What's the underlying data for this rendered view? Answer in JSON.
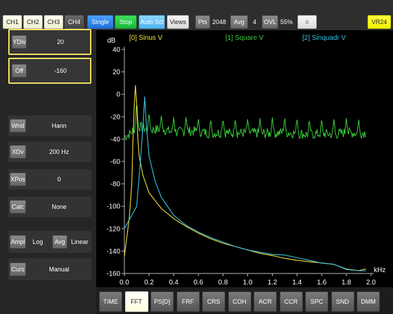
{
  "toolbar": {
    "channels": [
      "CH1",
      "CH2",
      "CH3",
      "CH4"
    ],
    "single": "Single",
    "stop": "Stop",
    "auto_scale": "Auto Scl",
    "views": "Views",
    "pts_label": "Pts",
    "pts_value": "2048",
    "avg_label": "Avg",
    "avg_value": "4",
    "ovl_label": "OVL",
    "ovl_value": "55%",
    "equals": "=",
    "vr": "VR24"
  },
  "sidebar": {
    "ydiv": {
      "label": "YDiv",
      "value": "20"
    },
    "off": {
      "label": "Off",
      "value": "-160"
    },
    "wnd": {
      "label": "Wnd",
      "value": "Hann"
    },
    "xdiv": {
      "label": "XDv",
      "value": "200 Hz"
    },
    "xpos": {
      "label": "XPos",
      "value": "0"
    },
    "calc": {
      "label": "Calc",
      "value": "None"
    },
    "ampl": {
      "label": "Ampl",
      "value": "Log",
      "avg_label": "Avg",
      "avg_value": "Linear"
    },
    "curs": {
      "label": "Curs",
      "value": "Manual"
    }
  },
  "bottom_tabs": [
    "TIME",
    "FFT",
    "PS[D]",
    "FRF",
    "CRS",
    "COH",
    "ACR",
    "CCR",
    "SPC",
    "SND",
    "DMM"
  ],
  "colors": {
    "ch0": "#f4e23a",
    "ch1": "#3ccf3c",
    "ch2": "#35c6e8",
    "active": "#f0e060"
  },
  "chart_data": {
    "type": "line",
    "ylabel": "dB",
    "xlabel": "kHz",
    "ylim": [
      -160,
      40
    ],
    "xlim": [
      0.0,
      2.0
    ],
    "yticks": [
      "40",
      "20",
      "0",
      "-20",
      "-40",
      "-60",
      "-80",
      "-100",
      "-120",
      "-140",
      "-160"
    ],
    "xticks": [
      "0.0",
      "0.2",
      "0.4",
      "0.6",
      "0.8",
      "1.0",
      "1.2",
      "1.4",
      "1.6",
      "1.8",
      "2.0"
    ],
    "series": [
      {
        "name": "[0] Sinus V",
        "color": "#f4e23a",
        "points": [
          [
            0.0,
            -145
          ],
          [
            0.04,
            -110
          ],
          [
            0.06,
            -80
          ],
          [
            0.07,
            -40
          ],
          [
            0.08,
            -10
          ],
          [
            0.09,
            8
          ],
          [
            0.1,
            -10
          ],
          [
            0.11,
            -40
          ],
          [
            0.12,
            -55
          ],
          [
            0.15,
            -72
          ],
          [
            0.2,
            -88
          ],
          [
            0.3,
            -102
          ],
          [
            0.4,
            -111
          ],
          [
            0.5,
            -118
          ],
          [
            0.6,
            -124
          ],
          [
            0.7,
            -129
          ],
          [
            0.8,
            -133
          ],
          [
            0.9,
            -136
          ],
          [
            1.0,
            -139
          ],
          [
            1.1,
            -142
          ],
          [
            1.2,
            -144
          ],
          [
            1.3,
            -146
          ],
          [
            1.4,
            -148
          ],
          [
            1.5,
            -150
          ],
          [
            1.6,
            -152
          ],
          [
            1.7,
            -153
          ],
          [
            1.8,
            -155
          ],
          [
            1.9,
            -156
          ],
          [
            1.96,
            -157
          ]
        ]
      },
      {
        "name": "[1] Square V",
        "color": "#3ccf3c",
        "points": [
          [
            0.0,
            -38
          ],
          [
            0.05,
            -35
          ],
          [
            0.1,
            -28
          ],
          [
            0.2,
            -32
          ],
          [
            0.3,
            -31
          ],
          [
            0.4,
            -34
          ],
          [
            0.5,
            -33
          ],
          [
            0.6,
            -33
          ],
          [
            0.7,
            -35
          ],
          [
            0.8,
            -34
          ],
          [
            0.9,
            -35
          ],
          [
            1.0,
            -34
          ],
          [
            1.1,
            -35
          ],
          [
            1.2,
            -35
          ],
          [
            1.3,
            -34
          ],
          [
            1.4,
            -35
          ],
          [
            1.5,
            -36
          ],
          [
            1.6,
            -35
          ],
          [
            1.7,
            -36
          ],
          [
            1.8,
            -34
          ],
          [
            1.9,
            -35
          ],
          [
            1.96,
            -34
          ]
        ],
        "peaks": [
          [
            0.1,
            -5
          ],
          [
            0.2,
            -15
          ],
          [
            0.3,
            -18
          ],
          [
            0.4,
            -20
          ],
          [
            0.5,
            -20
          ],
          [
            0.6,
            -21
          ],
          [
            0.7,
            -21
          ],
          [
            0.8,
            -21
          ],
          [
            0.9,
            -21
          ],
          [
            1.0,
            -21
          ],
          [
            1.1,
            -21
          ],
          [
            1.2,
            -20
          ],
          [
            1.3,
            -20
          ],
          [
            1.4,
            -20
          ],
          [
            1.5,
            -21
          ],
          [
            1.6,
            -21
          ],
          [
            1.7,
            -21
          ],
          [
            1.8,
            -21
          ],
          [
            1.9,
            -22
          ]
        ]
      },
      {
        "name": "[2] Sinquadr V",
        "color": "#35c6e8",
        "points": [
          [
            0.0,
            -120
          ],
          [
            0.1,
            -100
          ],
          [
            0.13,
            -60
          ],
          [
            0.15,
            -30
          ],
          [
            0.165,
            -2
          ],
          [
            0.18,
            -30
          ],
          [
            0.2,
            -55
          ],
          [
            0.25,
            -78
          ],
          [
            0.3,
            -92
          ],
          [
            0.4,
            -108
          ],
          [
            0.5,
            -117
          ],
          [
            0.6,
            -123
          ],
          [
            0.7,
            -128
          ],
          [
            0.8,
            -132
          ],
          [
            0.9,
            -136
          ],
          [
            1.0,
            -139
          ],
          [
            1.1,
            -141
          ],
          [
            1.2,
            -143
          ],
          [
            1.3,
            -145
          ],
          [
            1.4,
            -147
          ],
          [
            1.5,
            -149
          ],
          [
            1.6,
            -151
          ],
          [
            1.7,
            -153
          ],
          [
            1.8,
            -155
          ],
          [
            1.9,
            -157
          ],
          [
            1.96,
            -158
          ]
        ]
      }
    ]
  }
}
